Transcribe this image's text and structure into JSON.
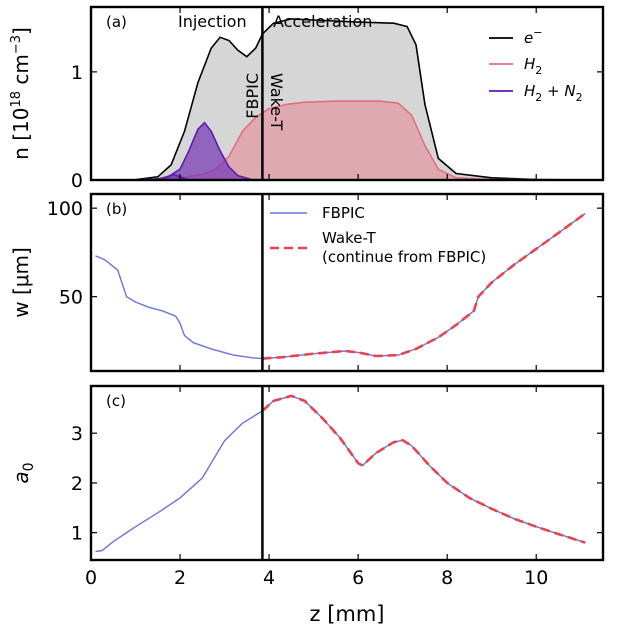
{
  "figure": {
    "xlabel": "z [mm]",
    "x_ticks": [
      0,
      2,
      4,
      6,
      8,
      10
    ],
    "xlim": [
      0,
      11.5
    ],
    "divider_z": 3.85
  },
  "chart_data": [
    {
      "type": "area",
      "panel": "(a)",
      "ylabel": "n [10^18 cm^-3]",
      "ylim": [
        0,
        1.6
      ],
      "y_ticks": [
        0,
        1
      ],
      "annotations": {
        "injection": "Injection",
        "acceleration": "Acceleration",
        "fbpic": "FBPIC",
        "waket": "Wake-T"
      },
      "legend": [
        "e⁻",
        "H₂",
        "H₂ + N₂"
      ],
      "series": [
        {
          "name": "e⁻",
          "color": "#000000",
          "fill": "#c8c8c8",
          "x": [
            0,
            1.0,
            1.5,
            1.8,
            2.1,
            2.4,
            2.7,
            2.9,
            3.1,
            3.3,
            3.5,
            3.7,
            3.85,
            4.1,
            4.5,
            5.0,
            6.0,
            6.8,
            7.1,
            7.3,
            7.5,
            7.8,
            8.2,
            9.0,
            10.0,
            11.2
          ],
          "y": [
            0,
            0.003,
            0.03,
            0.14,
            0.45,
            0.9,
            1.22,
            1.32,
            1.29,
            1.2,
            1.14,
            1.22,
            1.35,
            1.45,
            1.49,
            1.48,
            1.46,
            1.45,
            1.42,
            1.25,
            0.7,
            0.2,
            0.06,
            0.02,
            0.005,
            0
          ]
        },
        {
          "name": "H₂",
          "color": "#e26f7e",
          "fill": "#e39aa6",
          "x": [
            0,
            1.2,
            2.0,
            2.5,
            2.8,
            3.1,
            3.4,
            3.7,
            4.0,
            4.4,
            4.8,
            5.5,
            6.5,
            6.9,
            7.2,
            7.5,
            7.8,
            8.2,
            9.0,
            11.2
          ],
          "y": [
            0,
            0.003,
            0.02,
            0.05,
            0.1,
            0.22,
            0.45,
            0.58,
            0.66,
            0.7,
            0.72,
            0.73,
            0.73,
            0.71,
            0.6,
            0.32,
            0.1,
            0.02,
            0.005,
            0
          ]
        },
        {
          "name": "H₂ + N₂",
          "color": "#5a1ea8",
          "fill": "#7a3db5",
          "x": [
            1.2,
            1.7,
            2.0,
            2.2,
            2.4,
            2.55,
            2.7,
            2.9,
            3.1,
            3.3,
            3.6,
            3.9
          ],
          "y": [
            0,
            0.02,
            0.1,
            0.27,
            0.47,
            0.53,
            0.45,
            0.27,
            0.12,
            0.04,
            0.005,
            0
          ]
        },
        {
          "name": "small purple bump",
          "color": "#5a1ea8",
          "fill": "#7a3db5",
          "x": [
            1.45,
            1.7,
            1.85,
            2.0,
            2.2
          ],
          "y": [
            0,
            0.03,
            0.05,
            0.03,
            0
          ]
        }
      ]
    },
    {
      "type": "line",
      "panel": "(b)",
      "ylabel": "w [μm]",
      "ylim": [
        8,
        108
      ],
      "y_ticks": [
        50,
        100
      ],
      "legend": [
        "FBPIC",
        "Wake-T\n(continue from FBPIC)"
      ],
      "series": [
        {
          "name": "FBPIC",
          "color": "#6a74e0",
          "style": "solid",
          "x": [
            0.1,
            0.3,
            0.6,
            0.8,
            1.0,
            1.3,
            1.6,
            1.9,
            2.0,
            2.1,
            2.3,
            2.7,
            3.2,
            3.6,
            3.85,
            4.3,
            5.0,
            5.7,
            6.0,
            6.4,
            6.9,
            7.3,
            7.8,
            8.2,
            8.6,
            8.7,
            9.0,
            9.5,
            10.0,
            10.5,
            11.1
          ],
          "y": [
            73,
            71,
            65,
            50,
            47,
            44,
            42,
            39,
            35,
            28,
            24,
            20.5,
            17,
            15.5,
            15,
            15.8,
            17.8,
            19.3,
            18.5,
            16.5,
            17,
            20.5,
            27,
            34,
            42,
            50,
            58,
            68,
            77,
            86,
            97
          ]
        },
        {
          "name": "Wake-T (continue from FBPIC)",
          "color": "#e8434f",
          "style": "dashed",
          "x": [
            3.85,
            4.3,
            5.0,
            5.7,
            6.0,
            6.4,
            6.9,
            7.3,
            7.8,
            8.2,
            8.6,
            8.7,
            9.0,
            9.5,
            10.0,
            10.5,
            11.1
          ],
          "y": [
            15,
            15.8,
            17.8,
            19.3,
            18.5,
            16.5,
            17,
            20.5,
            27,
            34,
            42,
            50,
            58,
            68,
            77,
            86,
            97
          ]
        }
      ]
    },
    {
      "type": "line",
      "panel": "(c)",
      "ylabel": "a0",
      "ylim": [
        0.45,
        3.95
      ],
      "y_ticks": [
        1,
        2,
        3
      ],
      "series": [
        {
          "name": "FBPIC",
          "color": "#6a74e0",
          "style": "solid",
          "x": [
            0.1,
            0.25,
            0.5,
            1.0,
            1.5,
            2.0,
            2.5,
            3.0,
            3.4,
            3.85,
            4.1,
            4.5,
            4.8,
            5.2,
            5.6,
            6.0,
            6.1,
            6.4,
            6.8,
            7.0,
            7.2,
            7.6,
            8.0,
            8.5,
            9.0,
            9.5,
            10.0,
            10.5,
            11.1
          ],
          "y": [
            0.62,
            0.64,
            0.82,
            1.12,
            1.4,
            1.7,
            2.1,
            2.85,
            3.2,
            3.45,
            3.65,
            3.75,
            3.65,
            3.3,
            2.9,
            2.4,
            2.35,
            2.6,
            2.82,
            2.86,
            2.75,
            2.35,
            2.0,
            1.7,
            1.48,
            1.28,
            1.12,
            0.97,
            0.8
          ]
        },
        {
          "name": "Wake-T (continue from FBPIC)",
          "color": "#e8434f",
          "style": "dashed",
          "x": [
            3.85,
            4.1,
            4.5,
            4.8,
            5.2,
            5.6,
            6.0,
            6.1,
            6.4,
            6.8,
            7.0,
            7.2,
            7.6,
            8.0,
            8.5,
            9.0,
            9.5,
            10.0,
            10.5,
            11.1
          ],
          "y": [
            3.45,
            3.65,
            3.75,
            3.65,
            3.3,
            2.9,
            2.4,
            2.35,
            2.6,
            2.82,
            2.86,
            2.75,
            2.35,
            2.0,
            1.7,
            1.48,
            1.28,
            1.12,
            0.97,
            0.8
          ]
        }
      ]
    }
  ]
}
